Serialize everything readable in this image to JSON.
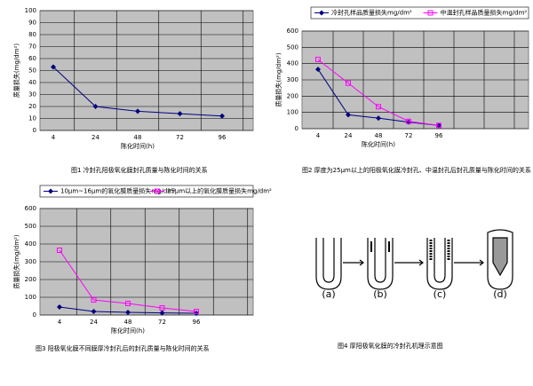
{
  "chart_data": [
    {
      "type": "line",
      "ylabel": "质量损失(mg/dm²)",
      "xlabel": "陈化时间(h)",
      "categories": [
        "4",
        "24",
        "48",
        "72",
        "96"
      ],
      "series": [
        {
          "color": "#000080",
          "values": [
            53,
            20,
            16,
            14,
            12
          ]
        }
      ],
      "ylim": [
        0,
        100
      ],
      "yticks": [
        0,
        10,
        20,
        30,
        40,
        50,
        60,
        70,
        80,
        90,
        100
      ],
      "grid": true,
      "caption": "图1 冷封孔阳极氧化膜封孔质量与陈化时间的关系"
    },
    {
      "type": "line",
      "ylabel": "质量损失(mg/dm²)",
      "xlabel": "陈化时间(h)",
      "categories": [
        "4",
        "24",
        "48",
        "72",
        "96"
      ],
      "series": [
        {
          "name": "冷封孔样品质量损失mg/dm²",
          "color": "#000080",
          "values": [
            365,
            85,
            65,
            40,
            20
          ]
        },
        {
          "name": "中温封孔样品质量损失mg/dm²",
          "color": "#ff00ff",
          "values": [
            425,
            280,
            135,
            45,
            20
          ]
        }
      ],
      "ylim": [
        0,
        600
      ],
      "yticks": [
        0,
        100,
        200,
        300,
        400,
        500,
        600
      ],
      "grid": true,
      "caption": "图2 厚度为25μm以上的阳极氧化膜冷封孔、中温封孔后封孔质量与陈化时间的关系"
    },
    {
      "type": "line",
      "ylabel": "质量损失(mg/dm²)",
      "xlabel": "陈化时间(h)",
      "categories": [
        "4",
        "24",
        "48",
        "72",
        "96"
      ],
      "series": [
        {
          "name": "10μm~16μm的氧化膜质量损失mg/dm²",
          "color": "#000080",
          "values": [
            45,
            20,
            15,
            12,
            10
          ]
        },
        {
          "name": "25μm以上的氧化膜质量损失mg/dm²",
          "color": "#ff00ff",
          "values": [
            365,
            85,
            65,
            40,
            20
          ]
        }
      ],
      "ylim": [
        0,
        600
      ],
      "yticks": [
        0,
        100,
        200,
        300,
        400,
        500,
        600
      ],
      "grid": true,
      "caption": "图3 阳极氧化膜不同膜厚冷封孔后的封孔质量与陈化时间的关系"
    }
  ],
  "diagram": {
    "labels": [
      "(a)",
      "(b)",
      "(c)",
      "(d)"
    ],
    "caption": "图4 厚阳极氧化膜的冷封孔机理示意图"
  }
}
